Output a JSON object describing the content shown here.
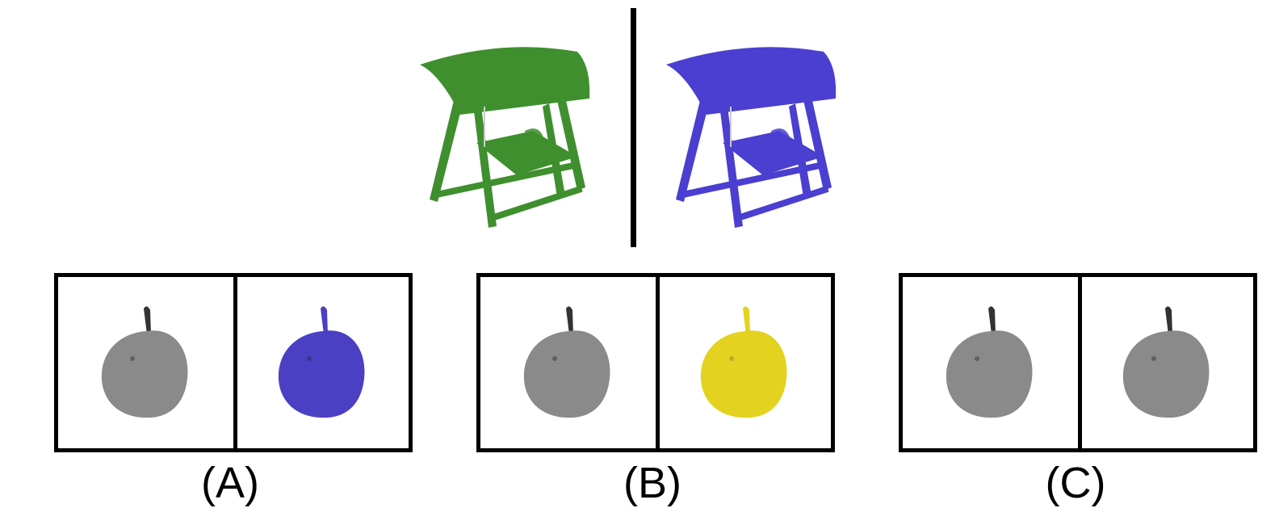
{
  "prompt": {
    "left_object": "swing-chair",
    "left_color": "#3f8f2f",
    "right_object": "swing-chair",
    "right_color": "#4a3fd0"
  },
  "options": [
    {
      "label": "(A)",
      "left_color": "#8a8a8a",
      "right_color": "#4b3fc4"
    },
    {
      "label": "(B)",
      "left_color": "#8a8a8a",
      "right_color": "#e3d21f"
    },
    {
      "label": "(C)",
      "left_color": "#8a8a8a",
      "right_color": "#8a8a8a"
    }
  ]
}
